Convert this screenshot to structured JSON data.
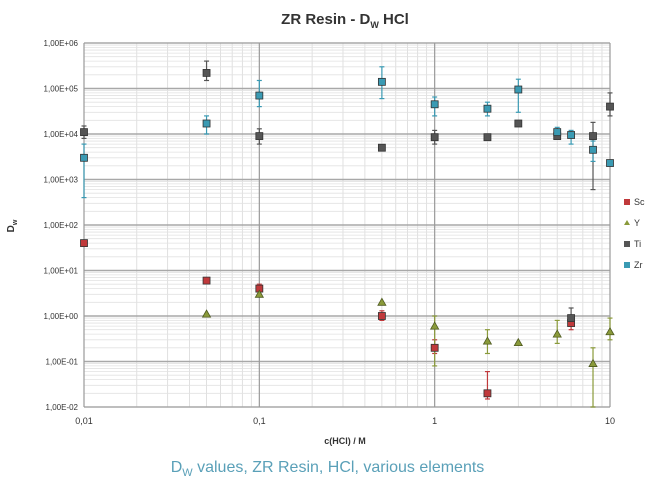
{
  "caption": {
    "prefix": "D",
    "subscript": "W",
    "rest": " values, ZR Resin, HCl, various elements"
  },
  "chart_data": {
    "type": "scatter",
    "title": {
      "main": "ZR Resin - D",
      "sub": "W",
      "suffix": " HCl"
    },
    "xlabel": "c(HCl) / M",
    "ylabel": {
      "main": "D",
      "sub": "w"
    },
    "x_scale": "log",
    "y_scale": "log",
    "xlim": [
      0.01,
      10
    ],
    "ylim": [
      0.01,
      1000000
    ],
    "x_ticks": [
      {
        "value": 0.01,
        "label": "0,01"
      },
      {
        "value": 0.1,
        "label": "0,1"
      },
      {
        "value": 1,
        "label": "1"
      },
      {
        "value": 10,
        "label": "10"
      }
    ],
    "y_ticks": [
      {
        "value": 0.01,
        "label": "1,00E-02"
      },
      {
        "value": 0.1,
        "label": "1,00E-01"
      },
      {
        "value": 1,
        "label": "1,00E+00"
      },
      {
        "value": 10,
        "label": "1,00E+01"
      },
      {
        "value": 100,
        "label": "1,00E+02"
      },
      {
        "value": 1000,
        "label": "1,00E+03"
      },
      {
        "value": 10000,
        "label": "1,00E+04"
      },
      {
        "value": 100000,
        "label": "1,00E+05"
      },
      {
        "value": 1000000,
        "label": "1,00E+06"
      }
    ],
    "grid": true,
    "legend_position": "right",
    "series": [
      {
        "name": "Sc",
        "marker": "square",
        "color": "#c0393b",
        "points": [
          {
            "x": 0.01,
            "y": 40
          },
          {
            "x": 0.05,
            "y": 6
          },
          {
            "x": 0.1,
            "y": 4,
            "err": [
              3,
              5
            ]
          },
          {
            "x": 0.5,
            "y": 1,
            "err": [
              0.8,
              1.3
            ]
          },
          {
            "x": 1,
            "y": 0.2,
            "err": [
              0.15,
              0.3
            ]
          },
          {
            "x": 2,
            "y": 0.02,
            "err": [
              0.015,
              0.06
            ]
          },
          {
            "x": 6,
            "y": 0.7,
            "err": [
              0.5,
              1
            ]
          }
        ]
      },
      {
        "name": "Y",
        "marker": "triangle",
        "color": "#8a9a3a",
        "points": [
          {
            "x": 0.05,
            "y": 1.1
          },
          {
            "x": 0.1,
            "y": 3
          },
          {
            "x": 0.5,
            "y": 2
          },
          {
            "x": 1,
            "y": 0.6,
            "err": [
              0.08,
              1
            ]
          },
          {
            "x": 2,
            "y": 0.28,
            "err": [
              0.15,
              0.5
            ]
          },
          {
            "x": 3,
            "y": 0.26
          },
          {
            "x": 5,
            "y": 0.4,
            "err": [
              0.25,
              0.8
            ]
          },
          {
            "x": 8,
            "y": 0.09,
            "err": [
              0.01,
              0.2
            ]
          },
          {
            "x": 10,
            "y": 0.45,
            "err": [
              0.3,
              0.9
            ]
          }
        ]
      },
      {
        "name": "Ti",
        "marker": "square",
        "color": "#555555",
        "points": [
          {
            "x": 0.01,
            "y": 11000,
            "err": [
              8000,
              15000
            ]
          },
          {
            "x": 0.05,
            "y": 220000,
            "err": [
              150000,
              400000
            ]
          },
          {
            "x": 0.1,
            "y": 9000,
            "err": [
              6000,
              13000
            ]
          },
          {
            "x": 0.5,
            "y": 5000
          },
          {
            "x": 1,
            "y": 8500,
            "err": [
              6000,
              12000
            ]
          },
          {
            "x": 2,
            "y": 8500
          },
          {
            "x": 3,
            "y": 17000
          },
          {
            "x": 5,
            "y": 9000
          },
          {
            "x": 6,
            "y": 0.9,
            "err": [
              0.6,
              1.5
            ]
          },
          {
            "x": 8,
            "y": 9000,
            "err": [
              600,
              18000
            ]
          },
          {
            "x": 10,
            "y": 40000,
            "err": [
              25000,
              80000
            ]
          }
        ]
      },
      {
        "name": "Zr",
        "marker": "square",
        "color": "#3a9ab3",
        "points": [
          {
            "x": 0.01,
            "y": 3000,
            "err": [
              400,
              6000
            ]
          },
          {
            "x": 0.05,
            "y": 17000,
            "err": [
              10000,
              25000
            ]
          },
          {
            "x": 0.1,
            "y": 70000,
            "err": [
              40000,
              150000
            ]
          },
          {
            "x": 0.5,
            "y": 140000,
            "err": [
              60000,
              300000
            ]
          },
          {
            "x": 1,
            "y": 45000,
            "err": [
              25000,
              65000
            ]
          },
          {
            "x": 2,
            "y": 36000,
            "err": [
              25000,
              50000
            ]
          },
          {
            "x": 3,
            "y": 95000,
            "err": [
              30000,
              160000
            ]
          },
          {
            "x": 5,
            "y": 11000,
            "err": [
              8000,
              14000
            ]
          },
          {
            "x": 6,
            "y": 9500,
            "err": [
              6000,
              12000
            ]
          },
          {
            "x": 8,
            "y": 4500,
            "err": [
              2500,
              7000
            ]
          },
          {
            "x": 10,
            "y": 2300
          }
        ]
      }
    ]
  }
}
